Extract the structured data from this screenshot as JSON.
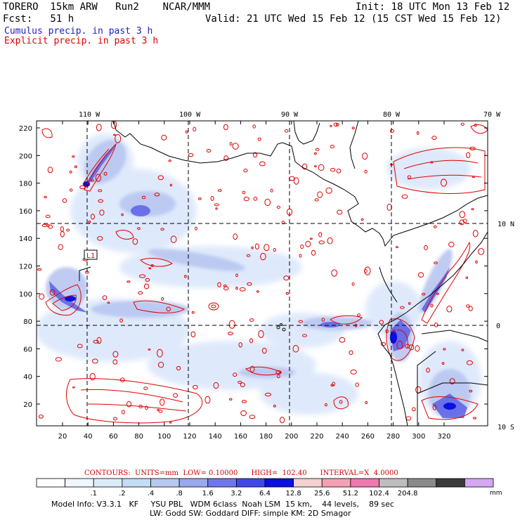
{
  "header": {
    "model": "TORERO  15km ARW   Run2    NCAR/MMM",
    "init": "Init: 18 UTC Mon 13 Feb 12",
    "forecast": "Fcst:   51 h",
    "valid": "Valid: 21 UTC Wed 15 Feb 12 (15 CST Wed 15 Feb 12)"
  },
  "legend": {
    "cumulus": "Cumulus precip. in past 3 h",
    "explicit": "Explicit precip. in past 3 h",
    "cumulus_color": "#2020c0",
    "explicit_color": "#e00000"
  },
  "map": {
    "top_lon_labels": [
      "110 W",
      "100 W",
      "90 W",
      "80 W",
      "70 W"
    ],
    "right_lat_labels": [
      "10 N",
      "0",
      "10 S"
    ],
    "y_ticks": [
      "220",
      "200",
      "180",
      "160",
      "140",
      "120",
      "100",
      "80",
      "60",
      "40",
      "20"
    ],
    "x_ticks": [
      "20",
      "40",
      "60",
      "80",
      "100",
      "120",
      "140",
      "160",
      "180",
      "200",
      "220",
      "240",
      "260",
      "280",
      "300",
      "320"
    ],
    "low_marker": "L1"
  },
  "contours_line": "CONTOURS:  UNITS=mm  LOW= 0.10000      HIGH=  102.40      INTERVAL=X  4.0000",
  "colorbar": {
    "colors": [
      "#ffffff",
      "#eef6ff",
      "#ddecfb",
      "#c4dcf4",
      "#b8c8f0",
      "#9aa8ee",
      "#7076ea",
      "#4248e8",
      "#0a10e0",
      "#f4d0d0",
      "#f4a0b4",
      "#ee78b0",
      "#bebebe",
      "#8a8a8a",
      "#3a3a3a",
      "#d4a8f4"
    ],
    "labels": [
      ".1",
      ".2",
      ".4",
      ".8",
      "1.6",
      "3.2",
      "6.4",
      "12.8",
      "25.6",
      "51.2",
      "102.4",
      "204.8"
    ],
    "unit": "mm"
  },
  "footer": {
    "line1": "Model Info: V3.3.1   KF     YSU PBL   WDM 6class  Noah LSM  15 km,    44 levels,    89 sec",
    "line2": "LW: Godd SW: Goddard DIFF: simple KM: 2D Smagor"
  }
}
